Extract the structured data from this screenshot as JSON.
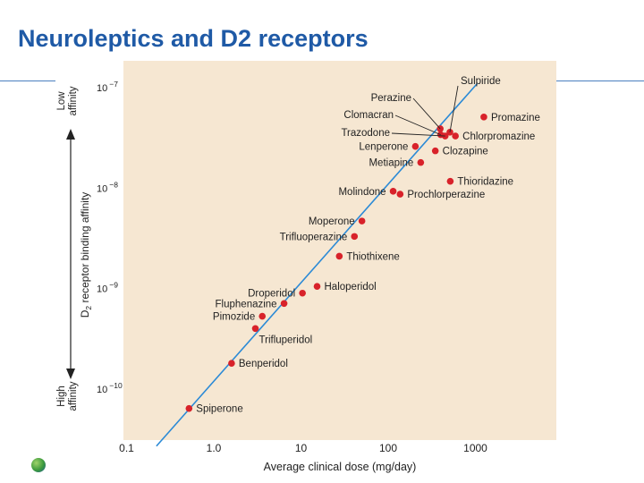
{
  "slide": {
    "title": "Neuroleptics and D2 receptors"
  },
  "colors": {
    "title": "#1f5aa6",
    "panel": "#f6e7d2",
    "line": "#2b8ad6",
    "point": "#d8222a",
    "axis": "#222222"
  },
  "chart_data": {
    "type": "scatter",
    "title": "",
    "xlabel": "Average clinical dose (mg/day)",
    "ylabel_main": "D",
    "ylabel_sub": "2",
    "ylabel_rest": " receptor binding affinity",
    "y_top_label": [
      "Low",
      "affinity"
    ],
    "y_bottom_label": [
      "High",
      "affinity"
    ],
    "x_scale": "log",
    "y_scale": "log",
    "xlim": [
      0.1,
      10000
    ],
    "ylim": [
      3e-11,
      1.5e-07
    ],
    "x_ticks": [
      {
        "v": 0.1,
        "label": "0.1"
      },
      {
        "v": 1,
        "label": "1.0"
      },
      {
        "v": 10,
        "label": "10"
      },
      {
        "v": 100,
        "label": "100"
      },
      {
        "v": 1000,
        "label": "1000"
      }
    ],
    "y_ticks": [
      {
        "v": 1e-07,
        "base": "10",
        "exp": "−7"
      },
      {
        "v": 1e-08,
        "base": "10",
        "exp": "−8"
      },
      {
        "v": 1e-09,
        "base": "10",
        "exp": "−9"
      },
      {
        "v": 1e-10,
        "base": "10",
        "exp": "−10"
      }
    ],
    "trend_line": {
      "x": [
        0.22,
        1050
      ],
      "y": [
        2.7e-11,
        1.1e-07
      ]
    },
    "points": [
      {
        "name": "Spiperone",
        "x": 0.52,
        "y": 6.4e-11,
        "label_pos": "right"
      },
      {
        "name": "Benperidol",
        "x": 1.6,
        "y": 1.8e-10,
        "label_pos": "right"
      },
      {
        "name": "Trifluperidol",
        "x": 3.0,
        "y": 4e-10,
        "label_pos": "right-below"
      },
      {
        "name": "Pimozide",
        "x": 3.6,
        "y": 5.3e-10,
        "label_pos": "left"
      },
      {
        "name": "Fluphenazine",
        "x": 6.4,
        "y": 7.1e-10,
        "label_pos": "left"
      },
      {
        "name": "Droperidol",
        "x": 10.4,
        "y": 9e-10,
        "label_pos": "left"
      },
      {
        "name": "Haloperidol",
        "x": 15.3,
        "y": 1.05e-09,
        "label_pos": "right"
      },
      {
        "name": "Thiothixene",
        "x": 27.5,
        "y": 2.1e-09,
        "label_pos": "right"
      },
      {
        "name": "Trifluoperazine",
        "x": 41,
        "y": 3.3e-09,
        "label_pos": "left"
      },
      {
        "name": "Moperone",
        "x": 50,
        "y": 4.7e-09,
        "label_pos": "left"
      },
      {
        "name": "Molindone",
        "x": 114,
        "y": 9.3e-09,
        "label_pos": "left"
      },
      {
        "name": "Prochlorperazine",
        "x": 137,
        "y": 8.7e-09,
        "label_pos": "right"
      },
      {
        "name": "Thioridazine",
        "x": 515,
        "y": 1.17e-08,
        "label_pos": "right"
      },
      {
        "name": "Metiapine",
        "x": 236,
        "y": 1.8e-08,
        "label_pos": "left"
      },
      {
        "name": "Lenperone",
        "x": 205,
        "y": 2.6e-08,
        "label_pos": "left"
      },
      {
        "name": "Clozapine",
        "x": 347,
        "y": 2.35e-08,
        "label_pos": "right"
      },
      {
        "name": "Chlorpromazine",
        "x": 590,
        "y": 3.3e-08,
        "label_pos": "right"
      },
      {
        "name": "Promazine",
        "x": 1250,
        "y": 5.1e-08,
        "label_pos": "right"
      },
      {
        "name": "Perazine",
        "x": 395,
        "y": 3.9e-08,
        "label_pos": "callout"
      },
      {
        "name": "Clomacran",
        "x": 400,
        "y": 3.4e-08,
        "label_pos": "callout"
      },
      {
        "name": "Trazodone",
        "x": 450,
        "y": 3.3e-08,
        "label_pos": "callout"
      },
      {
        "name": "Sulpiride",
        "x": 510,
        "y": 3.6e-08,
        "label_pos": "callout"
      }
    ]
  }
}
